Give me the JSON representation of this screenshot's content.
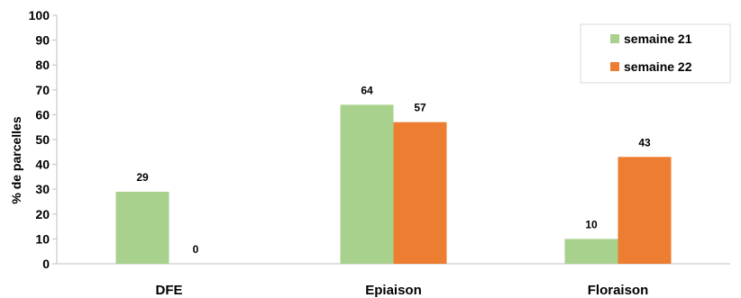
{
  "chart_data": {
    "type": "bar",
    "title": "",
    "xlabel": "",
    "ylabel": "% de parcelles",
    "ylim": [
      0,
      100
    ],
    "yticks": [
      0,
      10,
      20,
      30,
      40,
      50,
      60,
      70,
      80,
      90,
      100
    ],
    "categories": [
      "DFE",
      "Epiaison",
      "Floraison"
    ],
    "series": [
      {
        "name": "semaine 21",
        "values": [
          29,
          64,
          10
        ],
        "color": "#a9d18e"
      },
      {
        "name": "semaine 22",
        "values": [
          0,
          57,
          43
        ],
        "color": "#ed7d31"
      }
    ],
    "grid": false,
    "legend_position": "top-right"
  }
}
